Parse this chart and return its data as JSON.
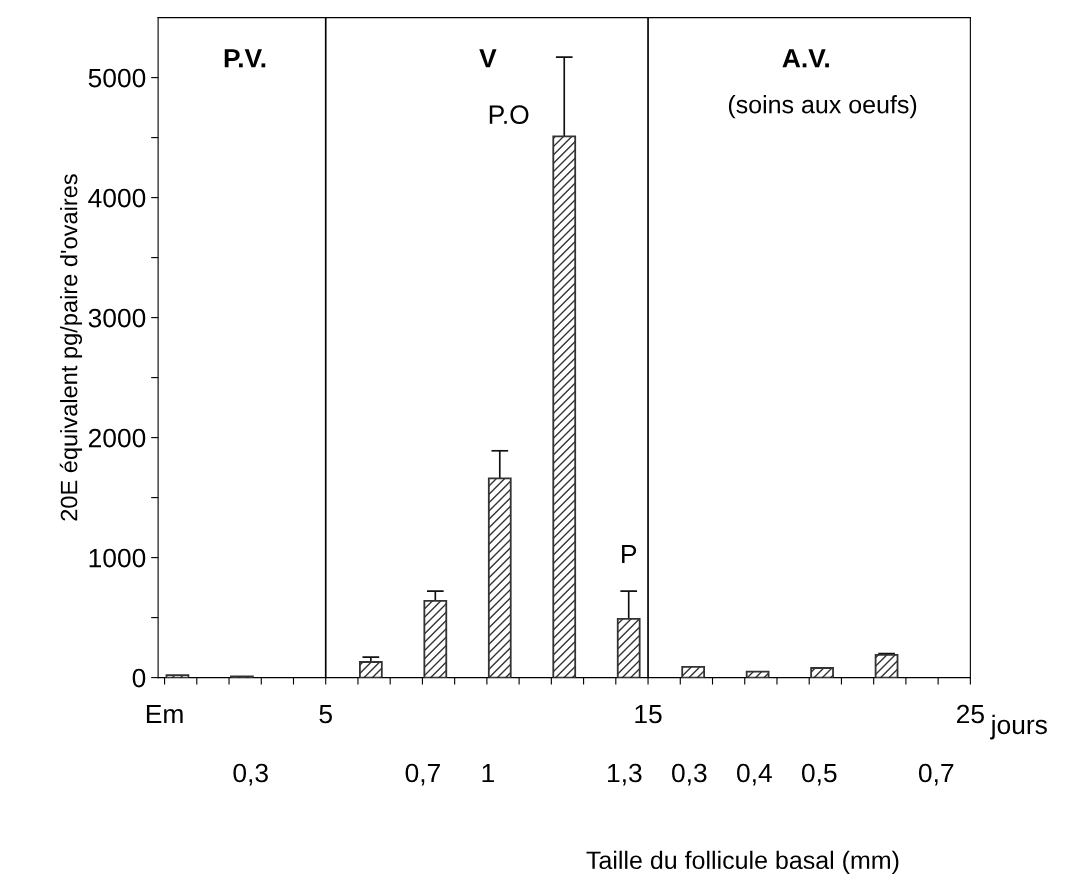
{
  "chart_data": {
    "type": "bar",
    "ylabel": "20E équivalent pg/paire d'ovaires",
    "xlabel": "jours",
    "x": [
      0.4,
      2.4,
      6.4,
      8.4,
      10.4,
      12.4,
      14.4,
      16.4,
      18.4,
      20.4,
      22.4
    ],
    "values": [
      20,
      10,
      130,
      640,
      1660,
      4510,
      490,
      90,
      50,
      80,
      190
    ],
    "errors": [
      null,
      null,
      40,
      80,
      230,
      660,
      230,
      null,
      null,
      null,
      10
    ],
    "color": "#333333",
    "xlim": [
      -0.2,
      25
    ],
    "xticks": [
      {
        "value": 0,
        "label": "Em"
      },
      {
        "value": 1,
        "label": null
      },
      {
        "value": 2,
        "label": null
      },
      {
        "value": 3,
        "label": null
      },
      {
        "value": 4,
        "label": null
      },
      5,
      {
        "value": 6,
        "label": null
      },
      {
        "value": 7,
        "label": null
      },
      {
        "value": 8,
        "label": null
      },
      {
        "value": 9,
        "label": null
      },
      {
        "value": 10,
        "label": null
      },
      {
        "value": 11,
        "label": null
      },
      {
        "value": 12,
        "label": null
      },
      {
        "value": 13,
        "label": null
      },
      {
        "value": 14,
        "label": null
      },
      15,
      {
        "value": 16,
        "label": null
      },
      {
        "value": 17,
        "label": null
      },
      {
        "value": 18,
        "label": null
      },
      {
        "value": 19,
        "label": null
      },
      {
        "value": 20,
        "label": null
      },
      {
        "value": 21,
        "label": null
      },
      {
        "value": 22,
        "label": null
      },
      {
        "value": 23,
        "label": null
      },
      {
        "value": 24,
        "label": null
      },
      25
    ],
    "ylim": [
      0,
      5500
    ],
    "yticks": [
      0,
      {
        "value": 500,
        "label": null
      },
      1000,
      {
        "value": 1500,
        "label": null
      },
      2000,
      {
        "value": 2500,
        "label": null
      },
      3000,
      {
        "value": 3500,
        "label": null
      },
      4000,
      {
        "value": 4500,
        "label": null
      },
      5000
    ],
    "ref_lines": [
      {
        "axis": "x",
        "value": 5,
        "color": "#000000"
      },
      {
        "axis": "x",
        "value": 15,
        "color": "#000000"
      }
    ],
    "annotations": [
      "P.V.",
      "V",
      "A.V.",
      "(soins aux oeufs)",
      {
        "text": "P.O",
        "x": 12.4,
        "y": 4510
      },
      {
        "text": "P",
        "x": 14.4,
        "y": 490
      },
      "0,3",
      "0,7",
      "1",
      "1,3",
      "0,3",
      "0,4",
      "0,5",
      "0,7",
      "Taille du follicule basal (mm)"
    ],
    "grid": false,
    "legend": false
  }
}
